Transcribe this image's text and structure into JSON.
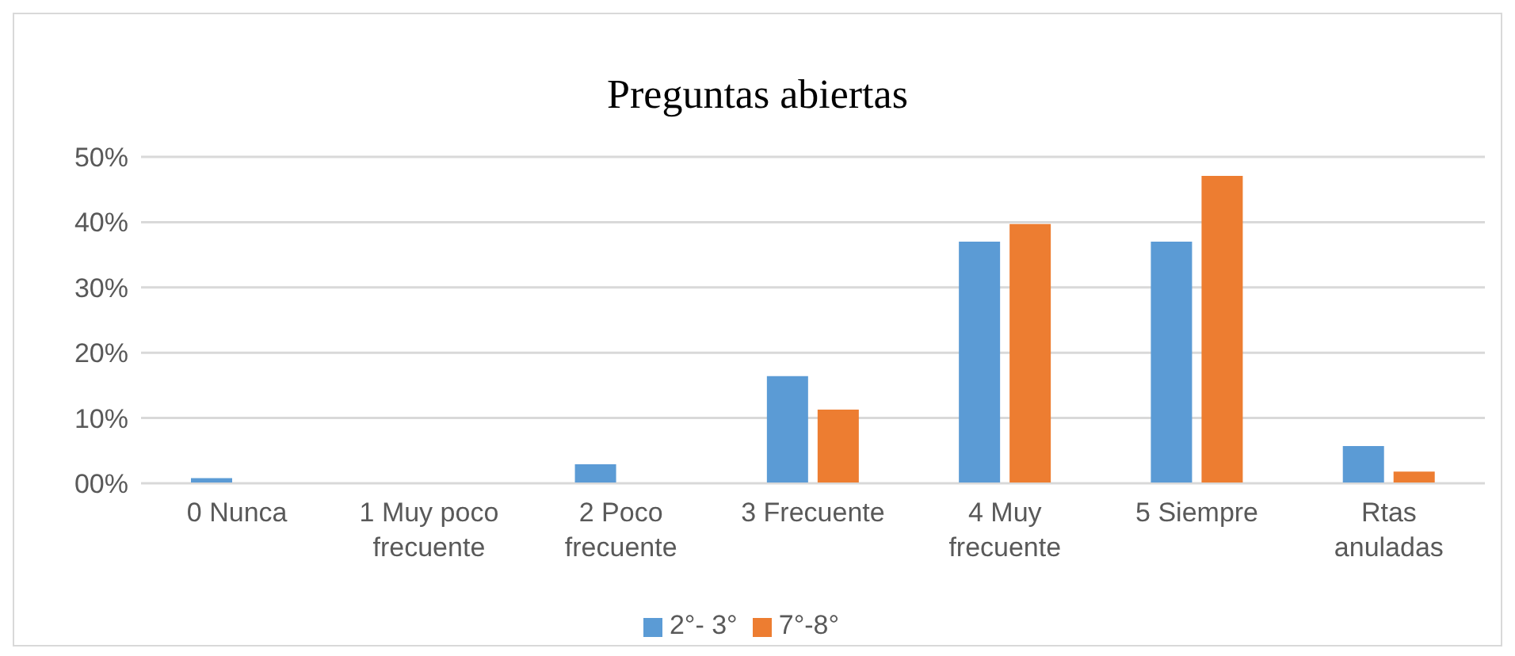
{
  "chart_data": {
    "type": "bar",
    "title": "Preguntas abiertas",
    "categories": [
      "0 Nunca",
      "1 Muy poco frecuente",
      "2 Poco frecuente",
      "3 Frecuente",
      "4 Muy frecuente",
      "5 Siempre",
      "Rtas anuladas"
    ],
    "series": [
      {
        "name": "2°- 3°",
        "color": "#5b9bd5",
        "values": [
          0.8,
          0,
          2.9,
          16.4,
          37.0,
          37.0,
          5.7
        ]
      },
      {
        "name": "7°-8°",
        "color": "#ed7d31",
        "values": [
          0,
          0,
          0,
          11.3,
          39.7,
          47.1,
          1.8
        ]
      }
    ],
    "ylim": [
      0,
      50
    ],
    "yticks": [
      {
        "value": 0,
        "label": "00%"
      },
      {
        "value": 10,
        "label": "10%"
      },
      {
        "value": 20,
        "label": "20%"
      },
      {
        "value": 30,
        "label": "30%"
      },
      {
        "value": 40,
        "label": "40%"
      },
      {
        "value": 50,
        "label": "50%"
      }
    ],
    "grid": "y",
    "legend": "bottom"
  }
}
